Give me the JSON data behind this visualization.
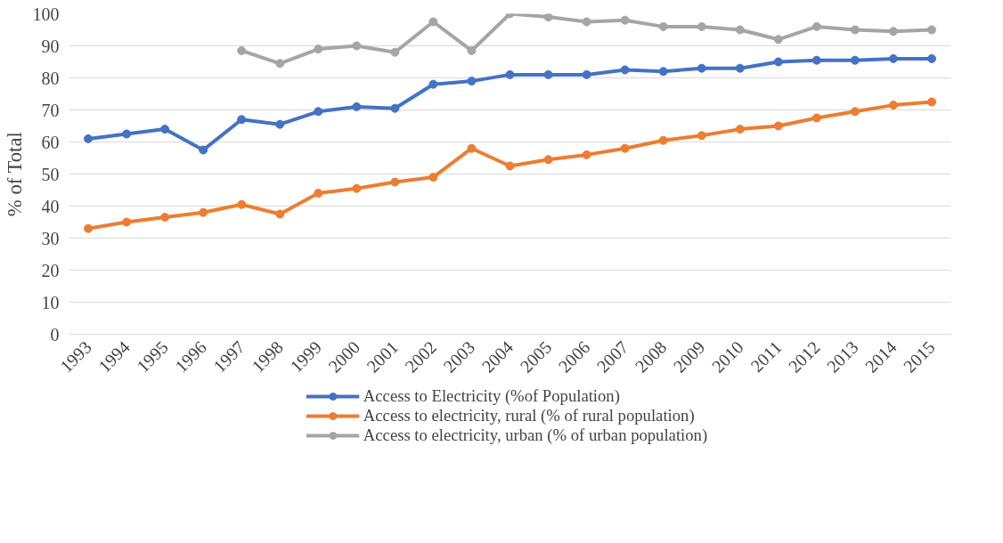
{
  "chart_data": {
    "type": "line",
    "ylabel": "% of Total",
    "categories": [
      "1993",
      "1994",
      "1995",
      "1996",
      "1997",
      "1998",
      "1999",
      "2000",
      "2001",
      "2002",
      "2003",
      "2004",
      "2005",
      "2006",
      "2007",
      "2008",
      "2009",
      "2010",
      "2011",
      "2012",
      "2013",
      "2014",
      "2015"
    ],
    "series": [
      {
        "name": "Access to Electricity (%of Population)",
        "color": "#4472c4",
        "values": [
          61,
          62.5,
          64,
          57.5,
          67,
          65.5,
          69.5,
          71,
          70.5,
          78,
          79,
          81,
          81,
          81,
          82.5,
          82,
          83,
          83,
          85,
          85.5,
          85.5,
          86,
          86
        ]
      },
      {
        "name": "Access to electricity, rural (% of rural population)",
        "color": "#ed7d31",
        "values": [
          33,
          35,
          36.5,
          38,
          40.5,
          37.5,
          44,
          45.5,
          47.5,
          49,
          58,
          52.5,
          54.5,
          56,
          58,
          60.5,
          62,
          64,
          65,
          67.5,
          69.5,
          71.5,
          72.5
        ]
      },
      {
        "name": "Access to electricity, urban (% of urban population)",
        "color": "#a5a5a5",
        "values": [
          null,
          null,
          null,
          null,
          88.5,
          84.5,
          89,
          90,
          88,
          97.5,
          88.5,
          100,
          99,
          97.5,
          98,
          96,
          96,
          95,
          92,
          96,
          95,
          94.5,
          95
        ]
      }
    ],
    "ylim": [
      0,
      100
    ],
    "yticks": [
      0,
      10,
      20,
      30,
      40,
      50,
      60,
      70,
      80,
      90,
      100
    ],
    "grid": "y",
    "legend": "bottom",
    "marker": "circle",
    "line_style": "solid"
  }
}
